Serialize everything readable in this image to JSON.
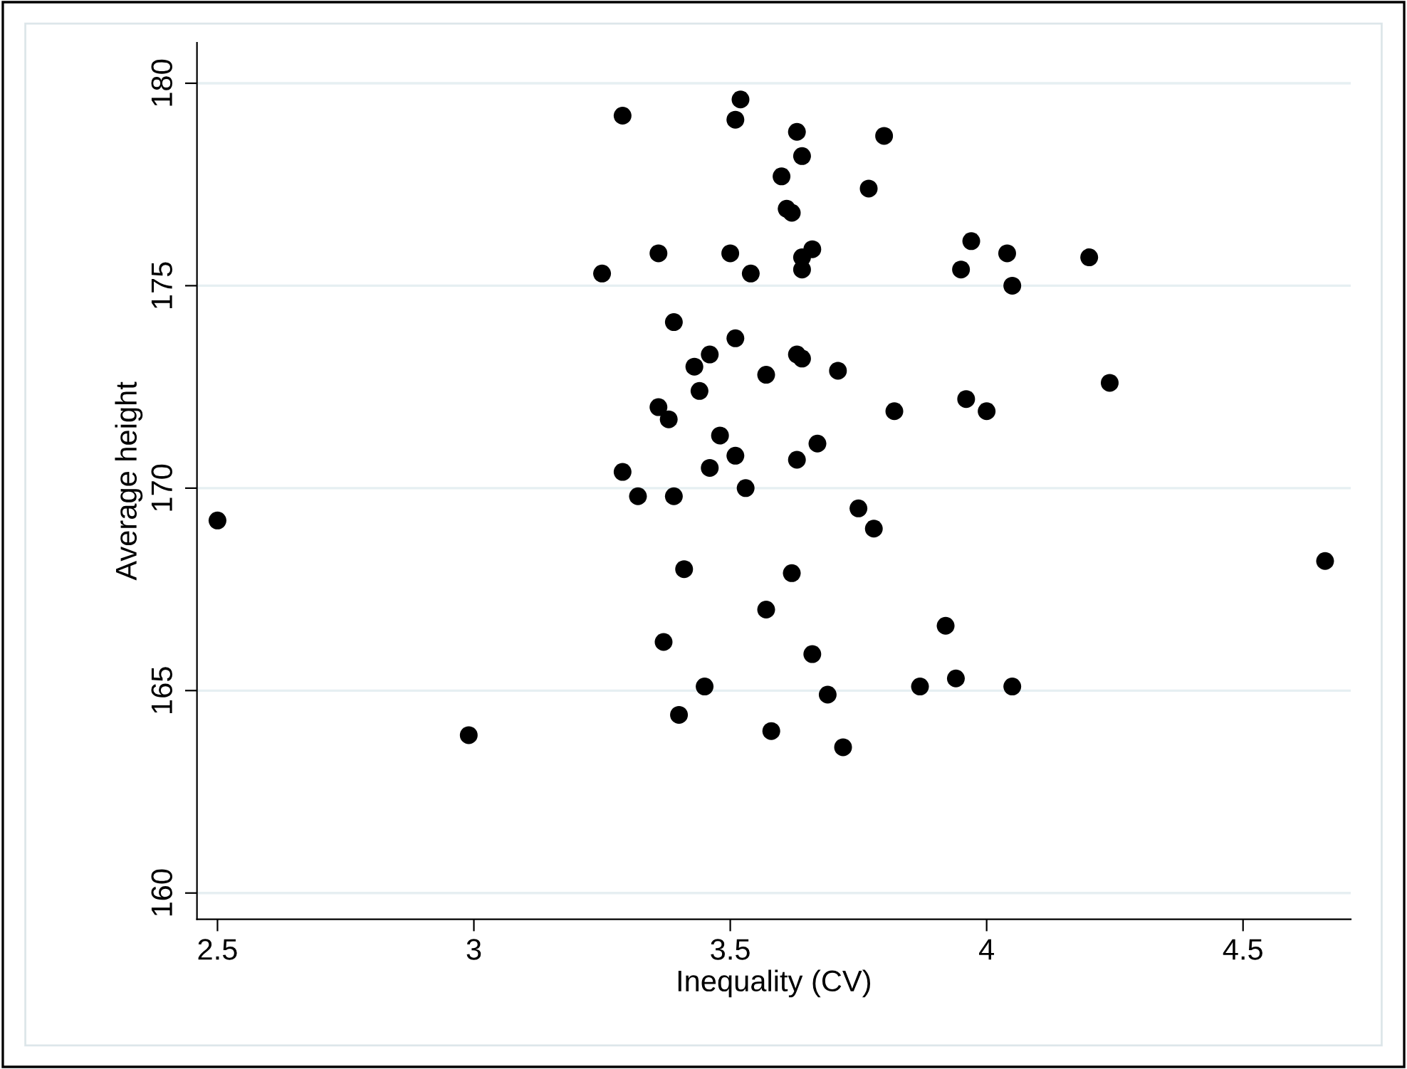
{
  "chart_data": {
    "type": "scatter",
    "xlabel": "Inequality (CV)",
    "ylabel": "Average height",
    "xlim": [
      2.46,
      4.71
    ],
    "xticks": [
      {
        "value": 2.5,
        "label": "2.5"
      },
      3,
      {
        "value": 3.5,
        "label": "3.5"
      },
      4,
      {
        "value": 4.5,
        "label": "4.5"
      }
    ],
    "ylim": [
      159.35,
      181
    ],
    "yticks": [
      160,
      165,
      170,
      175,
      180
    ],
    "grid": "y",
    "marker": "circle",
    "series": [
      {
        "color": "#000000",
        "x": [
          3.29,
          3.52,
          3.51,
          3.63,
          3.8,
          3.64,
          3.6,
          3.77,
          3.61,
          3.62,
          3.36,
          3.25,
          3.5,
          3.54,
          3.66,
          3.64,
          3.64,
          3.95,
          3.97,
          3.39,
          3.51,
          3.46,
          3.43,
          3.63,
          3.64,
          3.57,
          3.71,
          3.44,
          3.36,
          3.38,
          3.82,
          3.96,
          3.48,
          3.51,
          3.67,
          3.63,
          3.29,
          3.46,
          3.32,
          3.39,
          3.53,
          3.75,
          3.78,
          3.41,
          3.62,
          3.57,
          3.37,
          3.66,
          3.92,
          3.45,
          3.69,
          3.87,
          3.94,
          3.4,
          3.58,
          4.04,
          4.05,
          4.2,
          4.24,
          4.0,
          4.66,
          4.05,
          3.72,
          2.5,
          2.99
        ],
        "values": [
          179.2,
          179.6,
          179.1,
          178.8,
          178.7,
          178.2,
          177.7,
          177.4,
          176.9,
          176.8,
          175.8,
          175.3,
          175.8,
          175.3,
          175.9,
          175.7,
          175.4,
          175.4,
          176.1,
          174.1,
          173.7,
          173.3,
          173.0,
          173.3,
          173.2,
          172.8,
          172.9,
          172.4,
          172.0,
          171.7,
          171.9,
          172.2,
          171.3,
          170.8,
          171.1,
          170.7,
          170.4,
          170.5,
          169.8,
          169.8,
          170.0,
          169.5,
          169.0,
          168.0,
          167.9,
          167.0,
          166.2,
          165.9,
          166.6,
          165.1,
          164.9,
          165.1,
          165.3,
          164.4,
          164.0,
          175.8,
          175.0,
          175.7,
          172.6,
          171.9,
          168.2,
          165.1,
          163.6,
          169.2,
          163.9
        ]
      }
    ]
  }
}
